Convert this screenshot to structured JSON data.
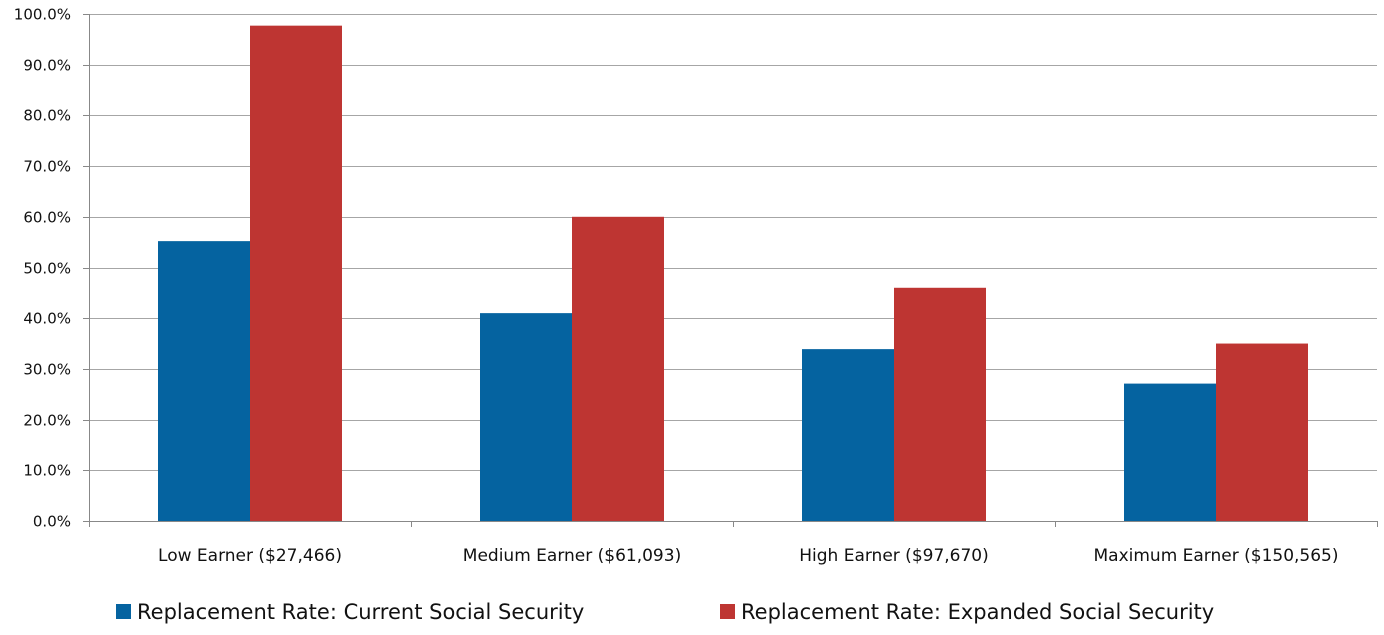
{
  "chart_data": {
    "type": "bar",
    "categories": [
      "Low Earner ($27,466)",
      "Medium Earner ($61,093)",
      "High Earner ($97,670)",
      "Maximum Earner ($150,565)"
    ],
    "series": [
      {
        "name": "Replacement Rate: Current Social Security",
        "color": "#0563A0",
        "values": [
          55.2,
          41.0,
          33.9,
          27.1
        ]
      },
      {
        "name": "Replacement Rate: Expanded Social Security",
        "color": "#BE3532",
        "values": [
          97.7,
          60.0,
          46.0,
          35.0
        ]
      }
    ],
    "yticks": [
      "0.0%",
      "10.0%",
      "20.0%",
      "30.0%",
      "40.0%",
      "50.0%",
      "60.0%",
      "70.0%",
      "80.0%",
      "90.0%",
      "100.0%"
    ],
    "ylim": [
      0,
      100
    ],
    "title": "",
    "xlabel": "",
    "ylabel": "",
    "grid": true,
    "legend_position": "bottom"
  }
}
